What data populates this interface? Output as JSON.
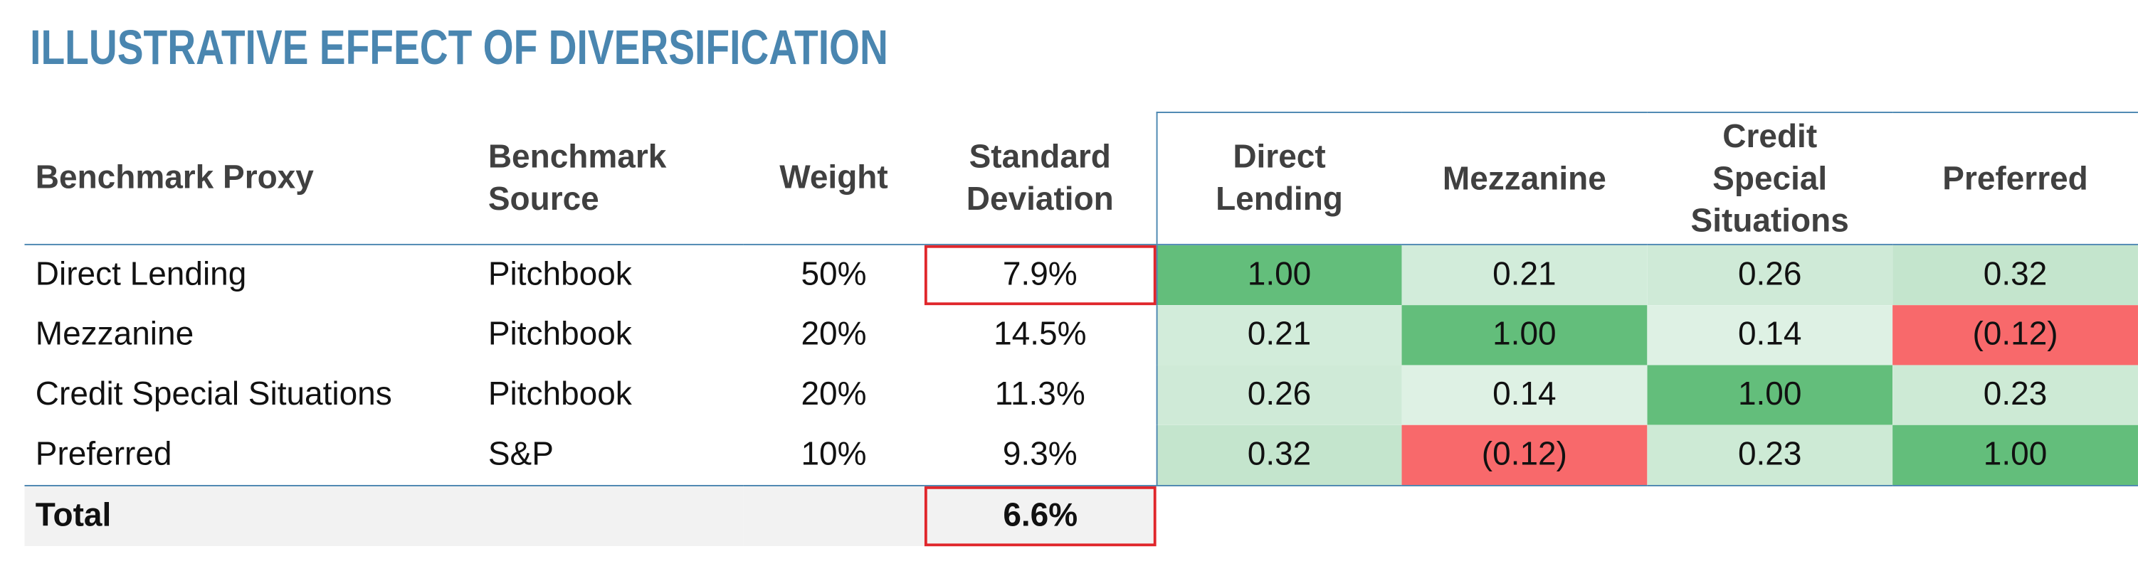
{
  "title": "ILLUSTRATIVE EFFECT OF DIVERSIFICATION",
  "table": {
    "headers": [
      "Benchmark Proxy",
      "Benchmark Source",
      "Weight",
      "Standard Deviation",
      "Direct Lending",
      "Mezzanine",
      "Credit Special Situations",
      "Preferred"
    ],
    "rows": [
      [
        "Direct Lending",
        "Pitchbook",
        "50%",
        "7.9%",
        "1.00",
        "0.21",
        "0.26",
        "0.32"
      ],
      [
        "Mezzanine",
        "Pitchbook",
        "20%",
        "14.5%",
        "0.21",
        "1.00",
        "0.14",
        "(0.12)"
      ],
      [
        "Credit Special Situations",
        "Pitchbook",
        "20%",
        "11.3%",
        "0.26",
        "0.14",
        "1.00",
        "0.23"
      ],
      [
        "Preferred",
        "S&P",
        "10%",
        "9.3%",
        "0.32",
        "(0.12)",
        "0.23",
        "1.00"
      ]
    ],
    "cell_colors": [
      [
        "#63be7b",
        "#d2ecda",
        "#cfeAd7",
        "#c4e5cd"
      ],
      [
        "#d2ecda",
        "#63be7b",
        "#deF1e4",
        "#f8696b"
      ],
      [
        "#cfeAd7",
        "#deF1e4",
        "#63be7b",
        "#cdeAd5"
      ],
      [
        "#c4e5cd",
        "#f8696b",
        "#cdeAd5",
        "#63be7b"
      ]
    ],
    "total": {
      "label": "Total",
      "standard_deviation": "6.6%"
    }
  }
}
